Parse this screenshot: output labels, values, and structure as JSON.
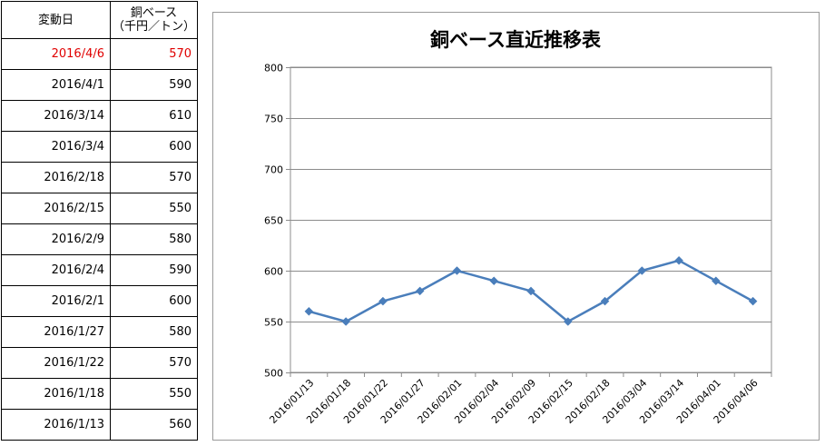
{
  "table": {
    "header_date": "変動日",
    "header_price_line1": "銅ベース",
    "header_price_line2": "（千円／トン）",
    "rows": [
      {
        "date": "2016/4/6",
        "price": "570",
        "highlight": true
      },
      {
        "date": "2016/4/1",
        "price": "590"
      },
      {
        "date": "2016/3/14",
        "price": "610"
      },
      {
        "date": "2016/3/4",
        "price": "600"
      },
      {
        "date": "2016/2/18",
        "price": "570"
      },
      {
        "date": "2016/2/15",
        "price": "550"
      },
      {
        "date": "2016/2/9",
        "price": "580"
      },
      {
        "date": "2016/2/4",
        "price": "590"
      },
      {
        "date": "2016/2/1",
        "price": "600"
      },
      {
        "date": "2016/1/27",
        "price": "580"
      },
      {
        "date": "2016/1/22",
        "price": "570"
      },
      {
        "date": "2016/1/18",
        "price": "550"
      },
      {
        "date": "2016/1/13",
        "price": "560"
      }
    ],
    "highlight_color": "#e00000"
  },
  "chart_data": {
    "type": "line",
    "title": "銅ベース直近推移表",
    "xlabel": "",
    "ylabel": "",
    "categories": [
      "2016/01/13",
      "2016/01/18",
      "2016/01/22",
      "2016/01/27",
      "2016/02/01",
      "2016/02/04",
      "2016/02/09",
      "2016/02/15",
      "2016/02/18",
      "2016/03/04",
      "2016/03/14",
      "2016/04/01",
      "2016/04/06"
    ],
    "series": [
      {
        "values": [
          560,
          550,
          570,
          580,
          600,
          590,
          580,
          550,
          570,
          600,
          610,
          590,
          570
        ],
        "color": "#4a7ebb",
        "marker": "diamond"
      }
    ],
    "ylim": [
      500,
      800
    ],
    "yticks": [
      500,
      550,
      600,
      650,
      700,
      750,
      800
    ],
    "grid": "horizontal"
  }
}
